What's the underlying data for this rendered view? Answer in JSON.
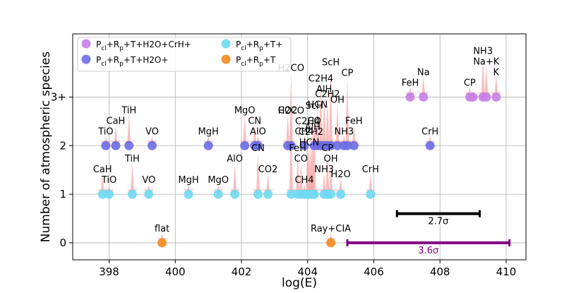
{
  "chart_data": {
    "type": "scatter",
    "title": "",
    "xlabel": "log(E)",
    "ylabel": "Number of atmospheric species",
    "xlim": [
      396.9,
      410.6
    ],
    "ylim": [
      -0.35,
      4.3
    ],
    "x_ticks": [
      398,
      400,
      402,
      404,
      406,
      408,
      410
    ],
    "y_ticks": [
      {
        "value": 0,
        "label": "0"
      },
      {
        "value": 1,
        "label": "1"
      },
      {
        "value": 2,
        "label": "2"
      },
      {
        "value": 3,
        "label": "3+"
      }
    ],
    "grid": true,
    "legend_position": "upper-left",
    "series": [
      {
        "name": "Pcl+Rp+T+H2O+CrH+",
        "color": "#c77ee6",
        "points": [
          {
            "x": 407.1,
            "y": 3,
            "label": "FeH",
            "label_dy": 0
          },
          {
            "x": 407.5,
            "y": 3,
            "label": "Na",
            "label_dy": 15
          },
          {
            "x": 408.9,
            "y": 3,
            "label": "CP",
            "label_dy": 0
          },
          {
            "x": 409.0,
            "y": 3,
            "label": "",
            "label_dy": 0
          },
          {
            "x": 409.3,
            "y": 3,
            "label": "NH3",
            "label_dy": 45
          },
          {
            "x": 409.4,
            "y": 3,
            "label": "Na+K",
            "label_dy": 30
          },
          {
            "x": 409.7,
            "y": 3,
            "label": "K",
            "label_dy": 15
          }
        ]
      },
      {
        "name": "Pcl+Rp+T+H2O+",
        "color": "#6b6be6",
        "points": [
          {
            "x": 397.9,
            "y": 2,
            "label": "TiO",
            "label_dy": 0
          },
          {
            "x": 398.2,
            "y": 2,
            "label": "CaH",
            "label_dy": 15
          },
          {
            "x": 398.6,
            "y": 2,
            "label": "TiH",
            "label_dy": 30
          },
          {
            "x": 399.3,
            "y": 2,
            "label": "VO",
            "label_dy": 0
          },
          {
            "x": 401.0,
            "y": 2,
            "label": "MgH",
            "label_dy": 0
          },
          {
            "x": 402.1,
            "y": 2,
            "label": "MgO",
            "label_dy": 30
          },
          {
            "x": 402.4,
            "y": 2,
            "label": "CN",
            "label_dy": 15
          },
          {
            "x": 402.5,
            "y": 2,
            "label": "AlO",
            "label_dy": 0
          },
          {
            "x": 403.4,
            "y": 2,
            "label": "CO2",
            "label_dy": 30
          },
          {
            "x": 403.5,
            "y": 2,
            "label": "H2CO",
            "label_dy": 90
          },
          {
            "x": 403.9,
            "y": 2,
            "label": "CH4",
            "label_dy": 0
          },
          {
            "x": 404.2,
            "y": 2,
            "label": "CO",
            "label_dy": 15
          },
          {
            "x": 404.3,
            "y": 2,
            "label": "HCN",
            "label_dy": 38
          },
          {
            "x": 404.4,
            "y": 2,
            "label": "C2H4",
            "label_dy": 75
          },
          {
            "x": 404.5,
            "y": 2,
            "label": "AlH",
            "label_dy": 60
          },
          {
            "x": 404.6,
            "y": 2,
            "label": "C2H2",
            "label_dy": 53
          },
          {
            "x": 404.7,
            "y": 2,
            "label": "ScH",
            "label_dy": 98
          },
          {
            "x": 404.9,
            "y": 2,
            "label": "OH",
            "label_dy": 45
          },
          {
            "x": 405.1,
            "y": 2,
            "label": "NH3",
            "label_dy": 0
          },
          {
            "x": 405.2,
            "y": 2,
            "label": "CP",
            "label_dy": 83
          },
          {
            "x": 405.4,
            "y": 2,
            "label": "FeH",
            "label_dy": 15
          },
          {
            "x": 407.7,
            "y": 2,
            "label": "CrH",
            "label_dy": 0
          }
        ]
      },
      {
        "name": "Pcl+Rp+T+",
        "color": "#6fd9f2",
        "points": [
          {
            "x": 397.8,
            "y": 1,
            "label": "CaH",
            "label_dy": 15
          },
          {
            "x": 398.0,
            "y": 1,
            "label": "TiO",
            "label_dy": 0
          },
          {
            "x": 398.7,
            "y": 1,
            "label": "TiH",
            "label_dy": 30
          },
          {
            "x": 399.2,
            "y": 1,
            "label": "VO",
            "label_dy": 0
          },
          {
            "x": 400.4,
            "y": 1,
            "label": "MgH",
            "label_dy": 0
          },
          {
            "x": 401.3,
            "y": 1,
            "label": "MgO",
            "label_dy": 0
          },
          {
            "x": 401.8,
            "y": 1,
            "label": "AlO",
            "label_dy": 30
          },
          {
            "x": 402.5,
            "y": 1,
            "label": "CN",
            "label_dy": 45
          },
          {
            "x": 402.8,
            "y": 1,
            "label": "CO2",
            "label_dy": 15
          },
          {
            "x": 403.5,
            "y": 1,
            "label": "H2CO",
            "label_dy": 98
          },
          {
            "x": 403.7,
            "y": 1,
            "label": "FeH",
            "label_dy": 45
          },
          {
            "x": 403.8,
            "y": 1,
            "label": "CO",
            "label_dy": 30
          },
          {
            "x": 403.9,
            "y": 1,
            "label": "CH4",
            "label_dy": 0
          },
          {
            "x": 404.0,
            "y": 1,
            "label": "C2H4",
            "label_dy": 83
          },
          {
            "x": 404.05,
            "y": 1,
            "label": "HCN",
            "label_dy": 53
          },
          {
            "x": 404.1,
            "y": 1,
            "label": "C2H2",
            "label_dy": 68
          },
          {
            "x": 404.15,
            "y": 1,
            "label": "AlH",
            "label_dy": 75
          },
          {
            "x": 404.2,
            "y": 1,
            "label": "ScH",
            "label_dy": 105
          },
          {
            "x": 404.5,
            "y": 1,
            "label": "NH3",
            "label_dy": 15
          },
          {
            "x": 404.6,
            "y": 1,
            "label": "CP",
            "label_dy": 45
          },
          {
            "x": 404.7,
            "y": 1,
            "label": "OH",
            "label_dy": 30
          },
          {
            "x": 405.0,
            "y": 1,
            "label": "H2O",
            "label_dy": 8
          },
          {
            "x": 405.9,
            "y": 1,
            "label": "CrH",
            "label_dy": 15
          }
        ]
      },
      {
        "name": "Pcl+Rp+T",
        "color": "#f28a1e",
        "points": [
          {
            "x": 399.6,
            "y": 0,
            "label": "flat",
            "label_dy": 0
          },
          {
            "x": 404.7,
            "y": 0,
            "label": "Ray+CIA",
            "label_dy": 0
          }
        ]
      }
    ],
    "legend": [
      {
        "label_base": "P",
        "label_sub": "cl",
        "label_mid": "+R",
        "label_sub2": "p",
        "label_rest": "+T+H2O+CrH+",
        "color": "#c77ee6"
      },
      {
        "label_base": "P",
        "label_sub": "cl",
        "label_mid": "+R",
        "label_sub2": "p",
        "label_rest": "+T+H2O+",
        "color": "#6b6be6"
      },
      {
        "label_base": "P",
        "label_sub": "cl",
        "label_mid": "+R",
        "label_sub2": "p",
        "label_rest": "+T+",
        "color": "#6fd9f2"
      },
      {
        "label_base": "P",
        "label_sub": "cl",
        "label_mid": "+R",
        "label_sub2": "p",
        "label_rest": "+T",
        "color": "#f28a1e"
      }
    ],
    "sigma_bars": [
      {
        "label": "2.7σ",
        "x_start": 406.7,
        "x_end": 409.2,
        "y": 0.6,
        "color": "#000000"
      },
      {
        "label": "3.6σ",
        "x_start": 405.2,
        "x_end": 410.1,
        "y": 0.0,
        "color": "#800080"
      }
    ]
  }
}
